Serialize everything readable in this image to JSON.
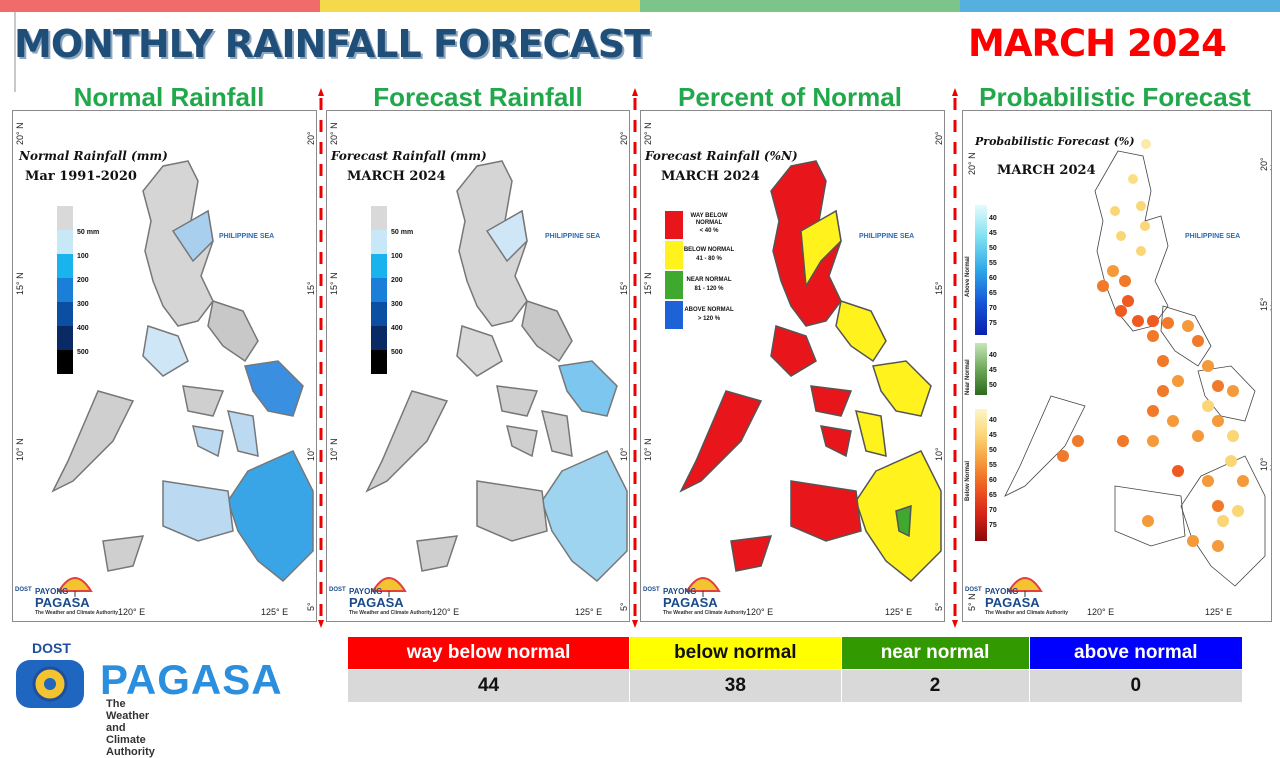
{
  "header": {
    "title": "MONTHLY RAINFALL FORECAST",
    "month": "MARCH 2024",
    "bar_colors": [
      "#f26b6b",
      "#f5d94a",
      "#7cc48a",
      "#55b0e0"
    ]
  },
  "panels": [
    {
      "title": "Normal Rainfall",
      "map_label": "Normal Rainfall (mm)",
      "map_sublabel": "Mar 1991-2020",
      "sea_label": "PHILIPPINE SEA",
      "legend": [
        "50 mm",
        "100",
        "200",
        "300",
        "400",
        "500"
      ],
      "legend_colors": [
        "#d9d9d9",
        "#c9e8f7",
        "#19b3ee",
        "#1a7fd8",
        "#0b4fa3",
        "#0a2a66",
        "#000000"
      ]
    },
    {
      "title": "Forecast Rainfall",
      "map_label": "Forecast Rainfall (mm)",
      "map_sublabel": "MARCH 2024",
      "sea_label": "PHILIPPINE SEA",
      "legend": [
        "50 mm",
        "100",
        "200",
        "300",
        "400",
        "500"
      ],
      "legend_colors": [
        "#d9d9d9",
        "#c9e8f7",
        "#19b3ee",
        "#1a7fd8",
        "#0b4fa3",
        "#0a2a66",
        "#000000"
      ]
    },
    {
      "title": "Percent of Normal",
      "map_label": "Forecast Rainfall (%N)",
      "map_sublabel": "MARCH 2024",
      "sea_label": "PHILIPPINE SEA",
      "legend": [
        {
          "label": "WAY BELOW NORMAL",
          "range": "< 40 %",
          "color": "#e8161b"
        },
        {
          "label": "BELOW NORMAL",
          "range": "41 - 80 %",
          "color": "#fff21d"
        },
        {
          "label": "NEAR NORMAL",
          "range": "81 - 120 %",
          "color": "#3ea82f"
        },
        {
          "label": "ABOVE NORMAL",
          "range": "> 120 %",
          "color": "#1d62d6"
        }
      ]
    },
    {
      "title": "Probabilistic Forecast",
      "map_label": "Probabilistic Forecast (%)",
      "map_sublabel": "MARCH 2024",
      "sea_label": "PHILIPPINE SEA",
      "above_label": "Above Normal",
      "near_label": "Near Normal",
      "below_label": "Below Normal",
      "above_ticks": [
        "40",
        "45",
        "50",
        "55",
        "60",
        "65",
        "70",
        "75"
      ],
      "near_ticks": [
        "40",
        "45",
        "50"
      ],
      "below_ticks": [
        "40",
        "45",
        "50",
        "55",
        "60",
        "65",
        "70",
        "75"
      ]
    }
  ],
  "coords": {
    "lat20": "20° N",
    "lat15": "15° N",
    "lat10": "10° N",
    "lat5": "5° N",
    "lon120": "120° E",
    "lon125": "125° E"
  },
  "mini_logo": {
    "dost": "DOST",
    "payong": "PAYONG",
    "pagasa": "PAGASA",
    "tagline": "The Weather and Climate Authority"
  },
  "brand": {
    "dost": "DOST",
    "name": "PAGASA",
    "tagline": "The Weather and Climate Authority"
  },
  "summary_table": {
    "headers": [
      "way below normal",
      "below normal",
      "near normal",
      "above normal"
    ],
    "header_colors": [
      "#ff0000",
      "#ffff00",
      "#339900",
      "#0000ff"
    ],
    "header_text_colors": [
      "#ffffff",
      "#111111",
      "#ffffff",
      "#ffffff"
    ],
    "values": [
      "44",
      "38",
      "2",
      "0"
    ]
  }
}
